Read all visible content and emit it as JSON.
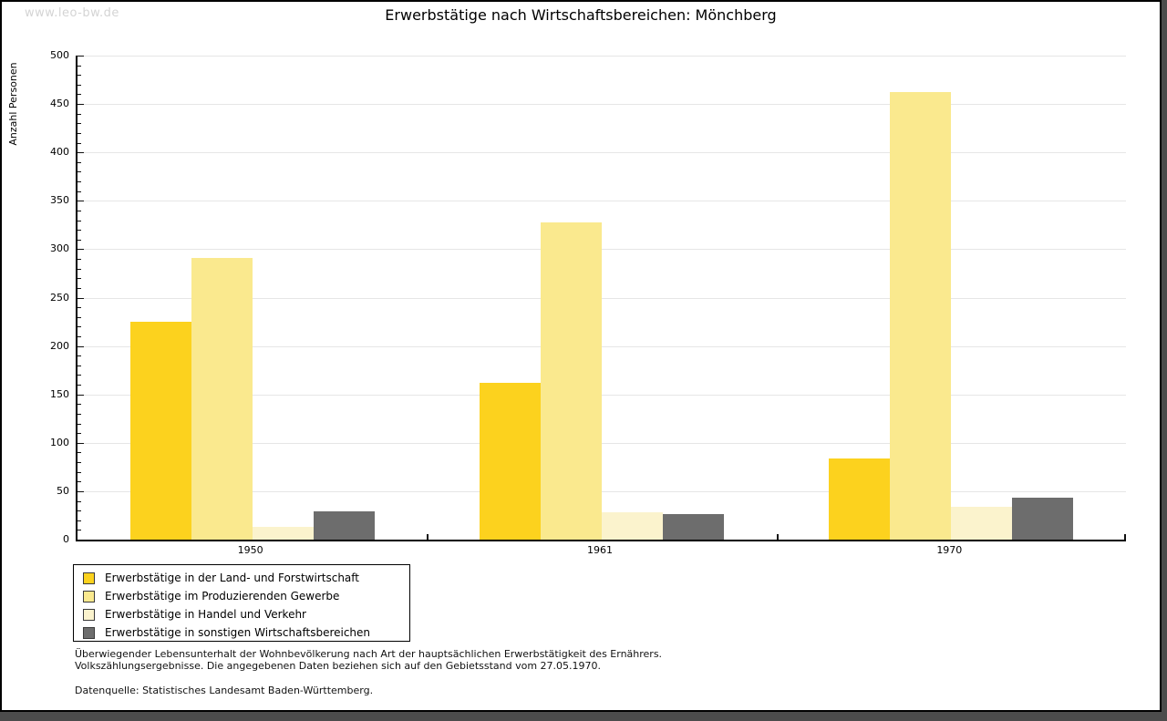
{
  "page": {
    "watermark": "www.leo-bw.de"
  },
  "chart_data": {
    "type": "bar",
    "title": "Erwerbstätige nach Wirtschaftsbereichen: Mönchberg",
    "ylabel": "Anzahl Personen",
    "xlabel": "",
    "ylim": [
      0,
      500
    ],
    "ytick_step": 50,
    "y_minor_tick_step": 10,
    "grid": "horizontal-major",
    "legend_position": "bottom-left-boxed",
    "categories": [
      "1950",
      "1961",
      "1970"
    ],
    "series": [
      {
        "name": "Erwerbstätige in der Land- und Forstwirtschaft",
        "color": "#fcd21e",
        "values": [
          225,
          162,
          84
        ]
      },
      {
        "name": "Erwerbstätige im Produzierenden Gewerbe",
        "color": "#fae98e",
        "values": [
          291,
          328,
          462
        ]
      },
      {
        "name": "Erwerbstätige in Handel und Verkehr",
        "color": "#fbf3cd",
        "values": [
          13,
          28,
          34
        ]
      },
      {
        "name": "Erwerbstätige in sonstigen Wirtschaftsbereichen",
        "color": "#6d6d6d",
        "values": [
          29,
          26,
          43
        ]
      }
    ]
  },
  "footnotes": {
    "line1": "Überwiegender Lebensunterhalt der Wohnbevölkerung nach Art der hauptsächlichen Erwerbstätigkeit des Ernährers.",
    "line2": "Volkszählungsergebnisse. Die angegebenen Daten beziehen sich auf den Gebietsstand vom 27.05.1970.",
    "source": "Datenquelle: Statistisches Landesamt Baden-Württemberg."
  }
}
